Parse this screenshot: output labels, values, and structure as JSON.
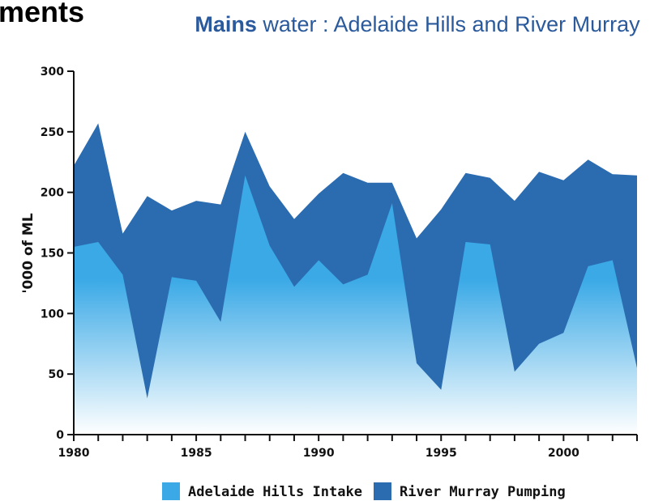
{
  "slide": {
    "heading": "ments"
  },
  "chart_title": {
    "bold": "Mains",
    "rest": " water : Adelaide Hills and River Murray"
  },
  "colors": {
    "adelaide_top": "#3aa9e6",
    "adelaide_bottom": "#ffffff",
    "murray": "#2b6cb0",
    "axis": "#111111"
  },
  "chart_data": {
    "type": "area",
    "stacked": false,
    "ylabel": "'000 of ML",
    "xlabel": "",
    "ylim": [
      0,
      300
    ],
    "xlim": [
      1980,
      2003
    ],
    "yticks": [
      0,
      50,
      100,
      150,
      200,
      250,
      300
    ],
    "xticks": [
      1980,
      1985,
      1990,
      1995,
      2000
    ],
    "x": [
      1980,
      1981,
      1982,
      1983,
      1984,
      1985,
      1986,
      1987,
      1988,
      1989,
      1990,
      1991,
      1992,
      1993,
      1994,
      1995,
      1996,
      1997,
      1998,
      1999,
      2000,
      2001,
      2002,
      2003
    ],
    "legend_position": "bottom",
    "series": [
      {
        "name": "River Murray Pumping",
        "role": "total",
        "values": [
          222,
          257,
          166,
          197,
          185,
          193,
          190,
          250,
          205,
          178,
          199,
          216,
          208,
          208,
          162,
          186,
          216,
          212,
          193,
          217,
          210,
          227,
          215,
          214
        ]
      },
      {
        "name": "Adelaide Hills Intake",
        "role": "portion",
        "values": [
          155,
          159,
          132,
          30,
          130,
          127,
          93,
          214,
          156,
          122,
          144,
          124,
          132,
          191,
          59,
          37,
          159,
          157,
          52,
          75,
          84,
          139,
          144,
          55
        ]
      }
    ]
  }
}
